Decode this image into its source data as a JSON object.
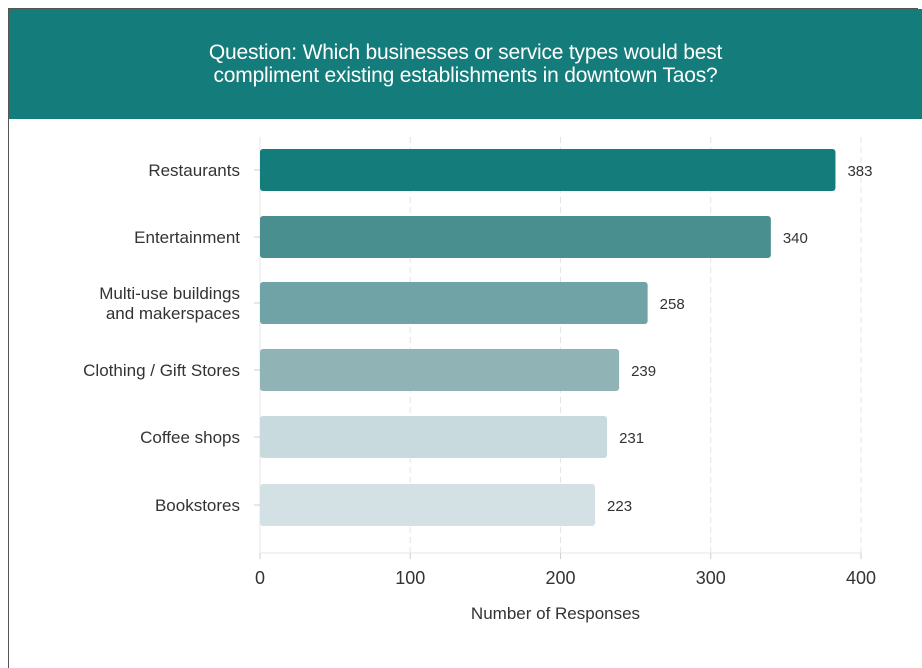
{
  "header": {
    "line1": "Question: Which businesses or service types would best",
    "line2": "compliment existing establishments in downtown Taos?",
    "background": "#147c7a"
  },
  "chart_data": {
    "type": "bar",
    "orientation": "horizontal",
    "categories": [
      [
        "Restaurants"
      ],
      [
        "Entertainment"
      ],
      [
        "Multi-use buildings",
        "and makerspaces"
      ],
      [
        "Clothing / Gift Stores"
      ],
      [
        "Coffee shops"
      ],
      [
        "Bookstores"
      ]
    ],
    "values": [
      383,
      340,
      258,
      239,
      231,
      223
    ],
    "colors": [
      "#147c7a",
      "#4a8f8f",
      "#6fa3a5",
      "#90b3b6",
      "#c8dadd",
      "#d4e1e4"
    ],
    "xlabel": "Number of Responses",
    "xlim": [
      0,
      400
    ],
    "xticks": [
      0,
      100,
      200,
      300,
      400
    ],
    "grid": true
  }
}
